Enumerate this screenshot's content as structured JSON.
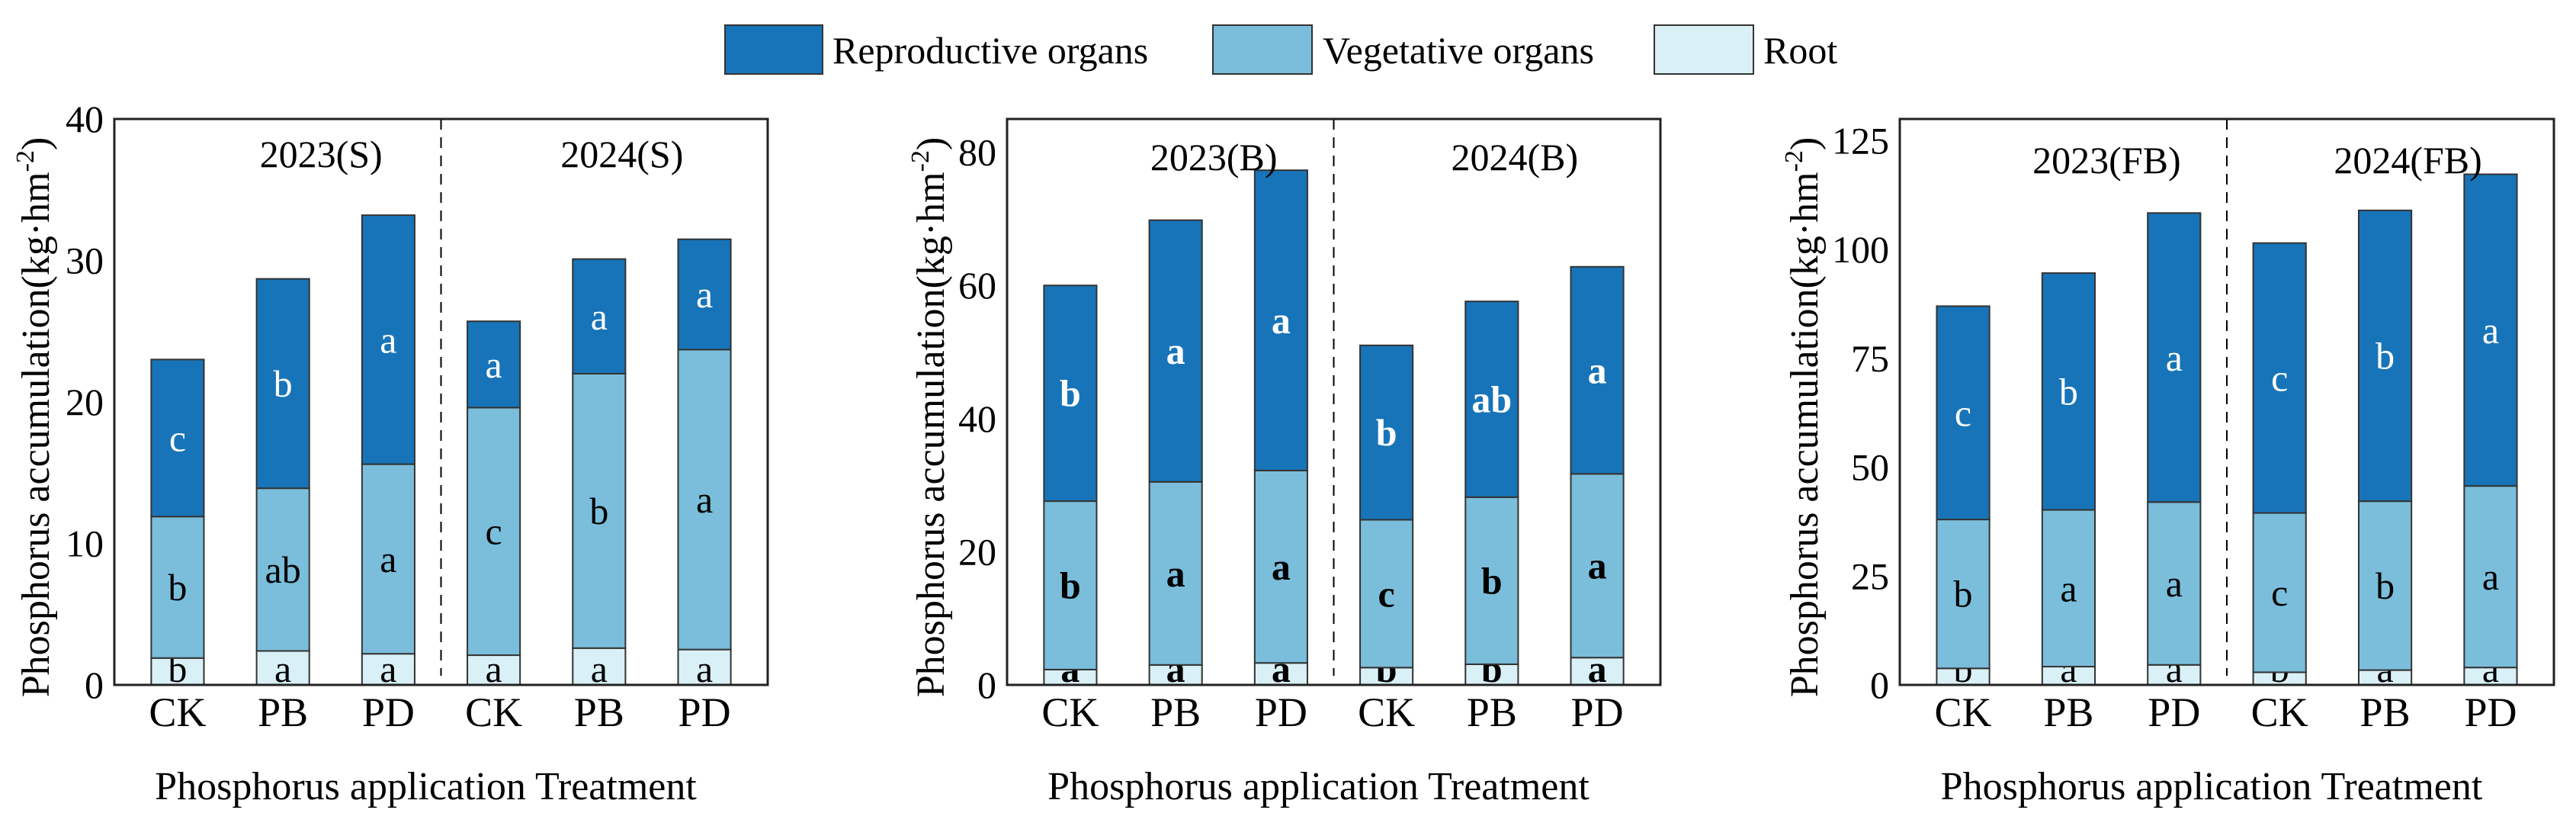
{
  "legend": [
    {
      "label": "Reproductive organs",
      "color": "#1874b8"
    },
    {
      "label": "Vegetative organs",
      "color": "#7abedb"
    },
    {
      "label": "Root",
      "color": "#d9f0f6"
    }
  ],
  "chart_data": [
    {
      "type": "bar",
      "stacked": true,
      "ylabel": "Phosphorus accumulation(kg·hm",
      "ylabel_sup": "-2",
      "ylabel_close": ")",
      "xlabel": "Phosphorus application Treatment",
      "categories": [
        "CK",
        "PB",
        "PD",
        "CK",
        "PB",
        "PD"
      ],
      "groups": [
        "2023(S)",
        "2024(S)"
      ],
      "ylim": [
        0,
        40
      ],
      "yticks": [
        0,
        10,
        20,
        30,
        40
      ],
      "bold_letters": false,
      "series": [
        {
          "name": "Root",
          "values": [
            1.9,
            2.4,
            2.2,
            2.1,
            2.6,
            2.5
          ],
          "letters": [
            "b",
            "a",
            "a",
            "a",
            "a",
            "a"
          ]
        },
        {
          "name": "Vegetative organs",
          "values": [
            10.0,
            11.5,
            13.4,
            17.5,
            19.4,
            21.2
          ],
          "letters": [
            "b",
            "ab",
            "a",
            "c",
            "b",
            "a"
          ]
        },
        {
          "name": "Reproductive organs",
          "values": [
            11.1,
            14.8,
            17.6,
            6.1,
            8.1,
            7.8
          ],
          "letters": [
            "c",
            "b",
            "a",
            "a",
            "a",
            "a"
          ]
        }
      ]
    },
    {
      "type": "bar",
      "stacked": true,
      "ylabel": "Phosphorus accumulation(kg·hm",
      "ylabel_sup": "-2",
      "ylabel_close": ")",
      "xlabel": "Phosphorus application Treatment",
      "categories": [
        "CK",
        "PB",
        "PD",
        "CK",
        "PB",
        "PD"
      ],
      "groups": [
        "2023(B)",
        "2024(B)"
      ],
      "ylim": [
        0,
        85
      ],
      "yticks": [
        0,
        20,
        40,
        60,
        80
      ],
      "bold_letters": true,
      "series": [
        {
          "name": "Root",
          "values": [
            2.3,
            3.0,
            3.3,
            2.6,
            3.1,
            4.1
          ],
          "letters": [
            "a",
            "a",
            "a",
            "b",
            "b",
            "a"
          ]
        },
        {
          "name": "Vegetative organs",
          "values": [
            25.3,
            27.5,
            28.9,
            22.2,
            25.1,
            27.6
          ],
          "letters": [
            "b",
            "a",
            "a",
            "c",
            "b",
            "a"
          ]
        },
        {
          "name": "Reproductive organs",
          "values": [
            32.4,
            39.3,
            45.1,
            26.2,
            29.4,
            31.1
          ],
          "letters": [
            "b",
            "a",
            "a",
            "b",
            "ab",
            "a"
          ]
        }
      ]
    },
    {
      "type": "bar",
      "stacked": true,
      "ylabel": "Phosphorus accumulation(kg·hm",
      "ylabel_sup": "-2",
      "ylabel_close": ")",
      "xlabel": "Phosphorus application Treatment",
      "categories": [
        "CK",
        "PB",
        "PD",
        "CK",
        "PB",
        "PD"
      ],
      "groups": [
        "2023(FB)",
        "2024(FB)"
      ],
      "ylim": [
        0,
        130
      ],
      "yticks": [
        0,
        25,
        50,
        75,
        100,
        125
      ],
      "bold_letters": false,
      "series": [
        {
          "name": "Root",
          "values": [
            3.8,
            4.2,
            4.6,
            2.9,
            3.4,
            4.0
          ],
          "letters": [
            "b",
            "a",
            "a",
            "b",
            "a",
            "a"
          ]
        },
        {
          "name": "Vegetative organs",
          "values": [
            34.2,
            36.0,
            37.4,
            36.6,
            38.8,
            41.7
          ],
          "letters": [
            "b",
            "a",
            "a",
            "c",
            "b",
            "a"
          ]
        },
        {
          "name": "Reproductive organs",
          "values": [
            49.0,
            54.4,
            66.4,
            62.0,
            66.8,
            71.6
          ],
          "letters": [
            "c",
            "b",
            "a",
            "c",
            "b",
            "a"
          ]
        }
      ]
    }
  ]
}
